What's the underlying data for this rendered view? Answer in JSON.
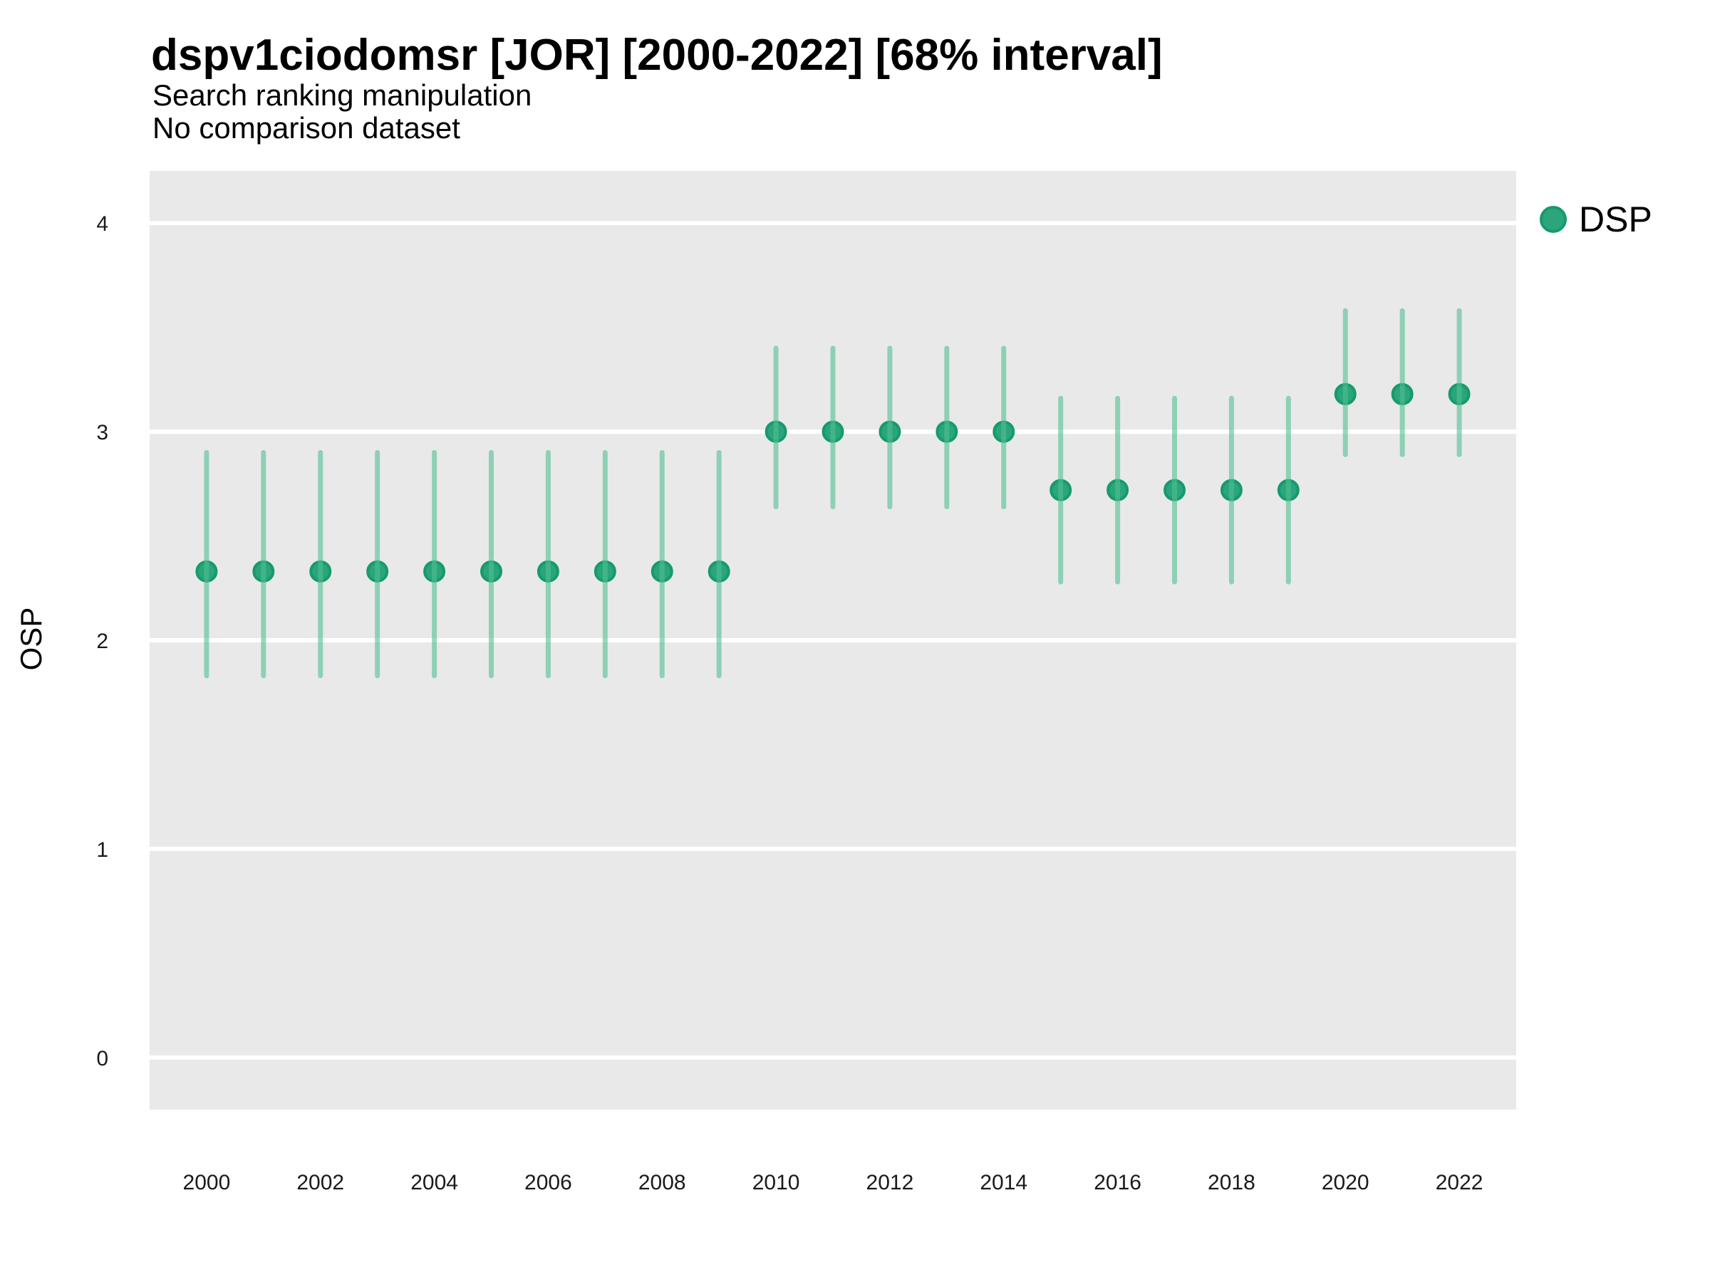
{
  "header": {
    "title": "dspv1ciodomsr [JOR] [2000-2022] [68% interval]",
    "subtitle1": "Search ranking manipulation",
    "subtitle2": "No comparison dataset"
  },
  "legend": {
    "position": "top-right",
    "items": [
      {
        "label": "DSP",
        "marker": "circle-icon",
        "color": "#2aa57c"
      }
    ]
  },
  "colors": {
    "point_fill": "#2aa57c",
    "point_stroke": "#169a6c",
    "interval": "rgba(82,192,147,0.6)",
    "panel_bg": "#e9e9e9",
    "grid": "#ffffff",
    "text": "#000000",
    "tick_text": "#1a1a1a"
  },
  "chart_data": {
    "type": "scatter",
    "subtype": "pointrange",
    "title": "dspv1ciodomsr [JOR] [2000-2022] [68% interval]",
    "subtitle": [
      "Search ranking manipulation",
      "No comparison dataset"
    ],
    "interval_label": "68% interval",
    "xlabel": "",
    "ylabel": "OSP",
    "grid": "horizontal-only",
    "legend_entries": [
      "DSP"
    ],
    "legend_position": "right",
    "xlim": [
      1999,
      2023
    ],
    "ylim": [
      -0.25,
      4.25
    ],
    "x_ticks": [
      2000,
      2002,
      2004,
      2006,
      2008,
      2010,
      2012,
      2014,
      2016,
      2018,
      2020,
      2022
    ],
    "y_ticks": [
      0,
      1,
      2,
      3,
      4
    ],
    "series": [
      {
        "name": "DSP",
        "points": [
          {
            "year": 2000,
            "value": 2.33,
            "lo": 1.83,
            "hi": 2.9
          },
          {
            "year": 2001,
            "value": 2.33,
            "lo": 1.83,
            "hi": 2.9
          },
          {
            "year": 2002,
            "value": 2.33,
            "lo": 1.83,
            "hi": 2.9
          },
          {
            "year": 2003,
            "value": 2.33,
            "lo": 1.83,
            "hi": 2.9
          },
          {
            "year": 2004,
            "value": 2.33,
            "lo": 1.83,
            "hi": 2.9
          },
          {
            "year": 2005,
            "value": 2.33,
            "lo": 1.83,
            "hi": 2.9
          },
          {
            "year": 2006,
            "value": 2.33,
            "lo": 1.83,
            "hi": 2.9
          },
          {
            "year": 2007,
            "value": 2.33,
            "lo": 1.83,
            "hi": 2.9
          },
          {
            "year": 2008,
            "value": 2.33,
            "lo": 1.83,
            "hi": 2.9
          },
          {
            "year": 2009,
            "value": 2.33,
            "lo": 1.83,
            "hi": 2.9
          },
          {
            "year": 2010,
            "value": 3.0,
            "lo": 2.64,
            "hi": 3.4
          },
          {
            "year": 2011,
            "value": 3.0,
            "lo": 2.64,
            "hi": 3.4
          },
          {
            "year": 2012,
            "value": 3.0,
            "lo": 2.64,
            "hi": 3.4
          },
          {
            "year": 2013,
            "value": 3.0,
            "lo": 2.64,
            "hi": 3.4
          },
          {
            "year": 2014,
            "value": 3.0,
            "lo": 2.64,
            "hi": 3.4
          },
          {
            "year": 2015,
            "value": 2.72,
            "lo": 2.28,
            "hi": 3.16
          },
          {
            "year": 2016,
            "value": 2.72,
            "lo": 2.28,
            "hi": 3.16
          },
          {
            "year": 2017,
            "value": 2.72,
            "lo": 2.28,
            "hi": 3.16
          },
          {
            "year": 2018,
            "value": 2.72,
            "lo": 2.28,
            "hi": 3.16
          },
          {
            "year": 2019,
            "value": 2.72,
            "lo": 2.28,
            "hi": 3.16
          },
          {
            "year": 2020,
            "value": 3.18,
            "lo": 2.89,
            "hi": 3.58
          },
          {
            "year": 2021,
            "value": 3.18,
            "lo": 2.89,
            "hi": 3.58
          },
          {
            "year": 2022,
            "value": 3.18,
            "lo": 2.89,
            "hi": 3.58
          }
        ]
      }
    ]
  }
}
